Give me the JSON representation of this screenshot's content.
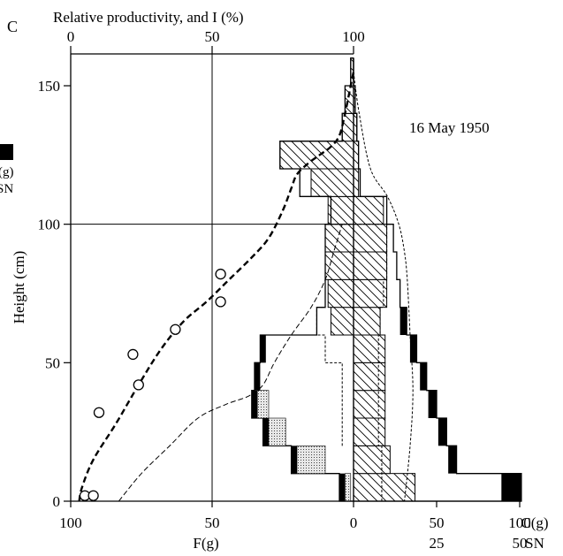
{
  "panel_label": "C",
  "date_label": "16 May 1950",
  "chart_data": {
    "type": "productive-structure",
    "top_axis": {
      "label": "Relative productivity, and I (%)",
      "ticks": [
        0,
        50,
        100
      ],
      "range": [
        0,
        100
      ]
    },
    "left_axis": {
      "label": "Height (cm)",
      "ticks": [
        0,
        50,
        100,
        150
      ],
      "range": [
        0,
        160
      ]
    },
    "bottom_f_axis": {
      "label": "F(g)",
      "tick_labels": [
        "100",
        "50",
        "0"
      ],
      "tick_values": [
        100,
        50,
        0
      ],
      "range": [
        100,
        0
      ]
    },
    "bottom_c_axis": {
      "label": "C(g)",
      "tick_values": [
        50,
        100
      ],
      "tick_labels": [
        "50",
        "100"
      ]
    },
    "bottom_sn_axis": {
      "label": "SN",
      "tick_values": [
        25,
        50
      ],
      "tick_labels": [
        "25",
        "50"
      ]
    },
    "left_margin_key": {
      "label_line1": "C(g)",
      "label_line2": "SN"
    },
    "layers_cm": [
      0,
      10,
      20,
      30,
      40,
      50,
      60,
      70,
      80,
      90,
      100,
      110,
      120,
      130,
      140,
      150
    ],
    "F_g_per_layer": [
      5,
      22,
      32,
      36,
      35,
      33,
      13,
      10,
      10,
      10,
      8,
      19,
      26,
      4,
      3,
      1
    ],
    "F_dotted_portion_g": [
      2,
      10,
      6,
      4,
      0,
      0,
      0,
      0,
      0,
      0,
      0,
      0,
      0,
      0,
      0,
      0
    ],
    "F_black_portion_g": [
      2,
      2,
      2,
      2,
      2,
      2,
      0,
      0,
      0,
      0,
      0,
      0,
      0,
      0,
      0,
      0
    ],
    "C_g_per_layer": [
      101,
      62,
      56,
      50,
      44,
      38,
      32,
      28,
      26,
      24,
      20,
      4,
      3,
      2,
      1,
      0
    ],
    "C_black_portion_g": [
      12,
      5,
      5,
      5,
      4,
      4,
      4,
      0,
      0,
      0,
      0,
      0,
      0,
      0,
      0,
      0
    ],
    "hatched_profile_left_F_g": [
      0,
      0,
      0,
      0,
      0,
      0,
      8,
      9,
      10,
      10,
      9,
      15,
      26,
      4,
      3,
      1
    ],
    "hatched_profile_right_C_g": [
      37,
      22,
      19,
      19,
      19,
      19,
      16,
      20,
      20,
      20,
      18,
      3,
      3,
      2,
      1,
      0
    ],
    "inner_outline_left_F_g": [
      0,
      0,
      4,
      4,
      4,
      10,
      13,
      10,
      10,
      10,
      0,
      0,
      0,
      0,
      0,
      0
    ],
    "inner_outline_right_C_g": [
      17,
      17,
      15,
      15,
      15,
      15,
      16,
      18,
      20,
      20,
      0,
      0,
      0,
      0,
      0,
      0
    ],
    "relative_productivity_circles": {
      "x": [
        5,
        8,
        10,
        24,
        22,
        37,
        53,
        53
      ],
      "y": [
        2,
        2,
        32,
        42,
        53,
        62,
        72,
        82
      ]
    },
    "light_intensity_curve": {
      "x_pct": [
        3,
        4,
        8,
        16,
        24,
        32,
        40,
        48,
        56,
        64,
        70,
        75,
        78,
        80,
        84,
        88,
        92,
        95,
        97,
        99,
        100
      ],
      "y_cm": [
        0,
        5,
        15,
        28,
        42,
        55,
        65,
        72,
        80,
        88,
        95,
        105,
        113,
        118,
        122,
        125,
        128,
        132,
        140,
        150,
        155
      ]
    },
    "fine_dashed_curve_left": {
      "x_pct": [
        17,
        25,
        35,
        45,
        55,
        63,
        68,
        72,
        78,
        85,
        90,
        93,
        96
      ],
      "y_cm": [
        0,
        10,
        20,
        30,
        35,
        38,
        42,
        50,
        60,
        70,
        80,
        90,
        100
      ]
    },
    "fine_dashed_curve_right": {
      "x_pct": [
        100,
        102,
        106,
        112,
        116,
        118,
        119,
        120,
        121,
        120,
        118
      ],
      "y_cm": [
        155,
        140,
        120,
        110,
        100,
        90,
        80,
        60,
        40,
        20,
        0
      ]
    },
    "reference_lines": {
      "vertical_at_top_pct": 50,
      "horizontal_at_cm": 100
    }
  }
}
